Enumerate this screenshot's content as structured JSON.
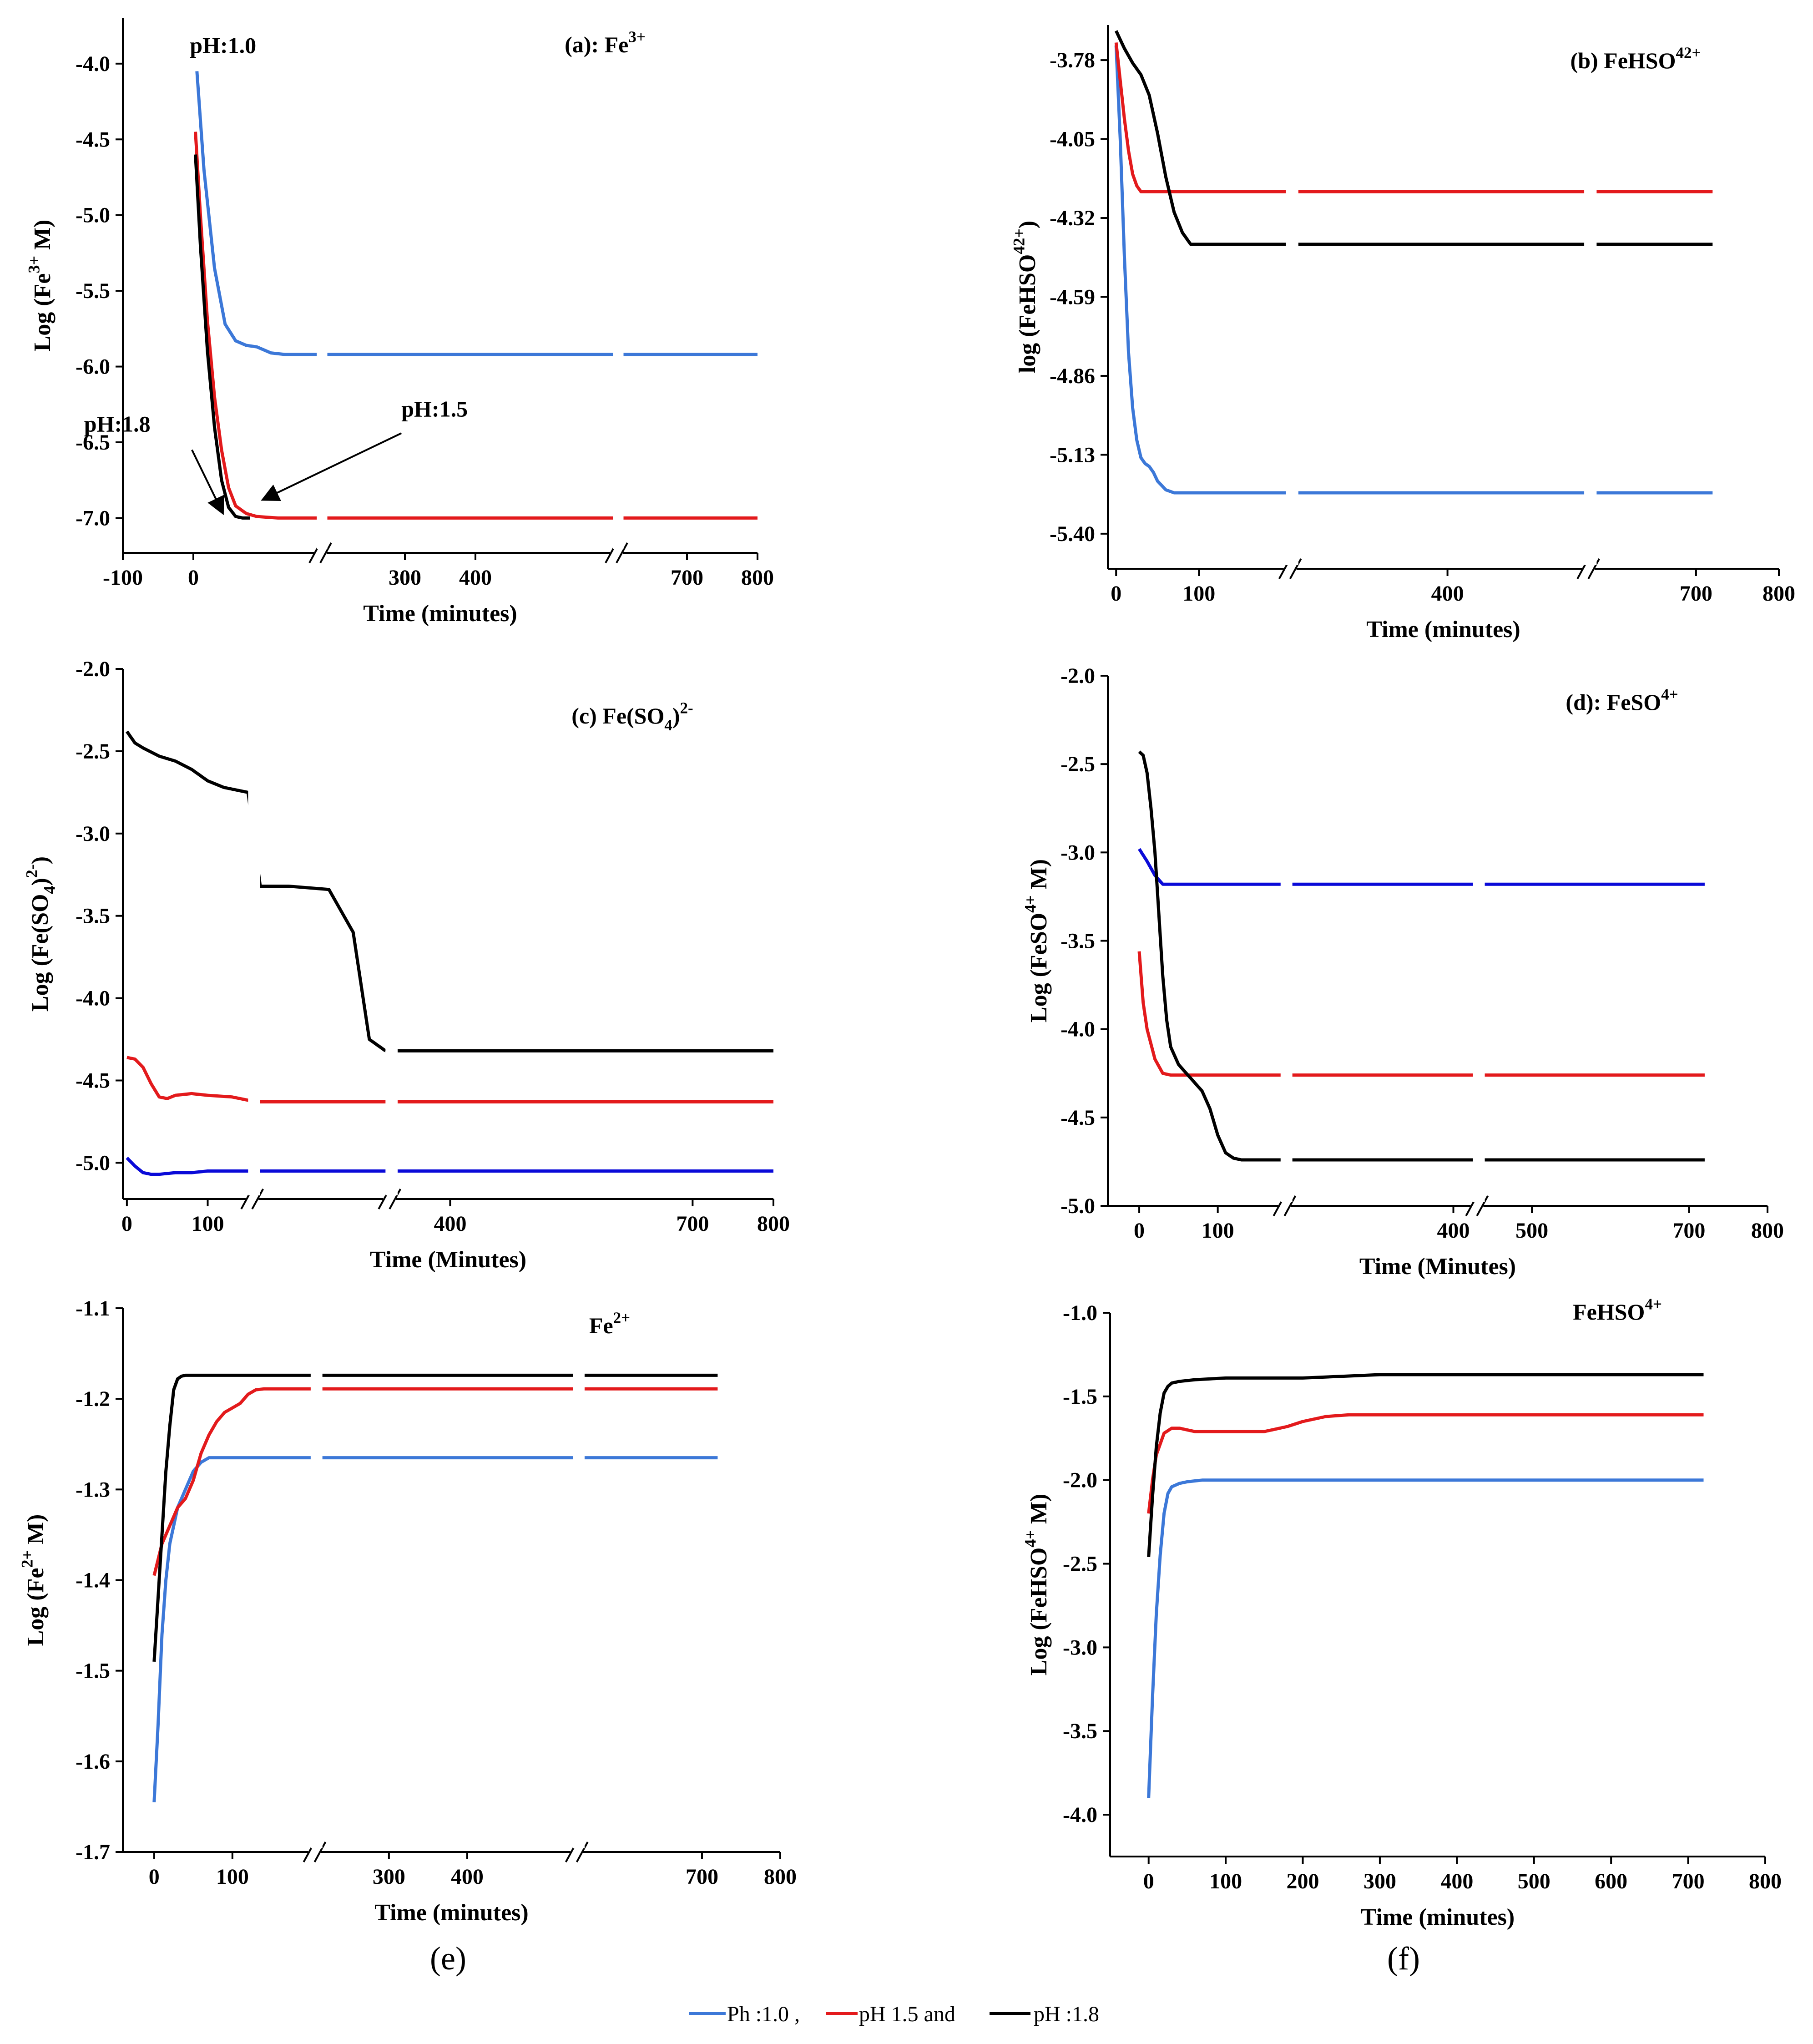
{
  "legend": {
    "items": [
      {
        "label": "Ph :1.0 ,",
        "color": "#3c78d8"
      },
      {
        "label": "pH 1.5 and",
        "color": "#e31a1c"
      },
      {
        "label": "pH :1.8",
        "color": "#000000"
      }
    ]
  },
  "captions": {
    "e": "(e)",
    "f": "(f)"
  },
  "chart_data": [
    {
      "id": "a",
      "type": "line",
      "title": "(a): Fe3+",
      "xlabel": "Time (minutes)",
      "ylabel": "Log (Fe3+ M)",
      "xlim": [
        -100,
        800
      ],
      "ylim": [
        -7.23,
        -3.7
      ],
      "xticks": [
        -100,
        0,
        300,
        400,
        700,
        800
      ],
      "xtick_labels": [
        "-100",
        "0",
        "300",
        "400",
        "700",
        "800"
      ],
      "yticks": [
        -7.0,
        -6.5,
        -6.0,
        -5.5,
        -5.0,
        -4.5,
        -4.0
      ],
      "ytick_labels": [
        "-7.0",
        "-6.5",
        "-6.0",
        "-5.5",
        "-5.0",
        "-4.5",
        "-4.0"
      ],
      "axis_breaks": [
        180,
        600
      ],
      "segment_gaps": [
        [
          175,
          190
        ],
        [
          595,
          610
        ]
      ],
      "annotations": [
        {
          "text": "pH:1.0",
          "x": -5,
          "y": -3.93
        },
        {
          "text": "pH:1.8",
          "x": -155,
          "y": -6.43
        },
        {
          "text": "pH:1.5",
          "x": 295,
          "y": -6.33
        }
      ],
      "arrows": [
        {
          "from": [
            -2,
            -6.55
          ],
          "to": [
            42,
            -6.97
          ]
        },
        {
          "from": [
            295,
            -6.44
          ],
          "to": [
            98,
            -6.88
          ]
        }
      ],
      "series": [
        {
          "name": "pH 1.0",
          "color": "#3c78d8",
          "x": [
            5,
            15,
            30,
            45,
            60,
            75,
            90,
            110,
            130,
            160,
            180,
            300,
            500,
            600,
            800
          ],
          "y": [
            -4.05,
            -4.7,
            -5.35,
            -5.72,
            -5.83,
            -5.86,
            -5.87,
            -5.91,
            -5.92,
            -5.92,
            -5.92,
            -5.92,
            -5.92,
            -5.92,
            -5.92
          ]
        },
        {
          "name": "pH 1.5",
          "color": "#e31a1c",
          "x": [
            3,
            10,
            20,
            30,
            40,
            50,
            60,
            75,
            90,
            120,
            180,
            300,
            500,
            600,
            800
          ],
          "y": [
            -4.45,
            -5.0,
            -5.7,
            -6.2,
            -6.55,
            -6.8,
            -6.92,
            -6.97,
            -6.99,
            -7.0,
            -7.0,
            -7.0,
            -7.0,
            -7.0,
            -7.0
          ]
        },
        {
          "name": "pH 1.8",
          "color": "#000000",
          "x": [
            3,
            10,
            20,
            30,
            40,
            50,
            60,
            70,
            80
          ],
          "y": [
            -4.6,
            -5.2,
            -5.9,
            -6.4,
            -6.75,
            -6.93,
            -6.99,
            -7.0,
            -7.0
          ]
        }
      ]
    },
    {
      "id": "b",
      "type": "line",
      "title": "(b) FeHSO42+",
      "xlabel": "Time (minutes)",
      "ylabel": "log (FeHSO42+)",
      "xlim": [
        -10,
        800
      ],
      "ylim": [
        -5.52,
        -3.66
      ],
      "xticks": [
        0,
        100,
        400,
        700,
        800
      ],
      "xtick_labels": [
        "0",
        "100",
        "400",
        "700",
        "800"
      ],
      "yticks": [
        -5.4,
        -5.13,
        -4.86,
        -4.59,
        -4.32,
        -4.05,
        -3.78
      ],
      "ytick_labels": [
        "-5.40",
        "-5.13",
        "-4.86",
        "-4.59",
        "-4.32",
        "-4.05",
        "-3.78"
      ],
      "axis_breaks": [
        210,
        570
      ],
      "segment_gaps": [
        [
          205,
          220
        ],
        [
          565,
          580
        ]
      ],
      "series": [
        {
          "name": "pH 1.0",
          "color": "#3c78d8",
          "x": [
            0,
            5,
            10,
            15,
            20,
            25,
            30,
            35,
            40,
            45,
            50,
            60,
            70,
            80,
            100,
            120,
            150,
            250,
            400,
            550,
            720
          ],
          "y": [
            -3.73,
            -4.05,
            -4.45,
            -4.78,
            -4.97,
            -5.08,
            -5.14,
            -5.16,
            -5.17,
            -5.19,
            -5.22,
            -5.25,
            -5.26,
            -5.26,
            -5.26,
            -5.26,
            -5.26,
            -5.26,
            -5.26,
            -5.26,
            -5.26
          ]
        },
        {
          "name": "pH 1.5",
          "color": "#e31a1c",
          "x": [
            0,
            5,
            10,
            15,
            20,
            25,
            30,
            40,
            50,
            70,
            100,
            150,
            250,
            400,
            550,
            720
          ],
          "y": [
            -3.72,
            -3.85,
            -3.98,
            -4.09,
            -4.17,
            -4.21,
            -4.23,
            -4.23,
            -4.23,
            -4.23,
            -4.23,
            -4.23,
            -4.23,
            -4.23,
            -4.23,
            -4.23
          ]
        },
        {
          "name": "pH 1.8",
          "color": "#000000",
          "x": [
            0,
            5,
            10,
            20,
            30,
            40,
            50,
            60,
            70,
            80,
            90,
            100,
            130,
            200,
            400,
            550,
            720
          ],
          "y": [
            -3.68,
            -3.71,
            -3.74,
            -3.79,
            -3.83,
            -3.9,
            -4.03,
            -4.18,
            -4.3,
            -4.37,
            -4.41,
            -4.41,
            -4.41,
            -4.41,
            -4.41,
            -4.41,
            -4.41
          ]
        }
      ]
    },
    {
      "id": "c",
      "type": "line",
      "title": "(c) Fe(SO4)2-",
      "xlabel": "Time (Minutes)",
      "ylabel": "Log (Fe(SO4)2-)",
      "xlim": [
        -5,
        800
      ],
      "ylim": [
        -5.22,
        -2.0
      ],
      "xticks": [
        0,
        100,
        400,
        700,
        800
      ],
      "xtick_labels": [
        "0",
        "100",
        "400",
        "700",
        "800"
      ],
      "yticks": [
        -5.0,
        -4.5,
        -4.0,
        -3.5,
        -3.0,
        -2.5,
        -2.0
      ],
      "ytick_labels": [
        "-5.0",
        "-4.5",
        "-4.0",
        "-3.5",
        "-3.0",
        "-2.5",
        "-2.0"
      ],
      "axis_breaks": [
        155,
        325
      ],
      "segment_gaps": [
        [
          150,
          165
        ],
        [
          320,
          335
        ]
      ],
      "series": [
        {
          "name": "pH 1.8",
          "color": "#000000",
          "x": [
            0,
            10,
            20,
            40,
            60,
            80,
            100,
            120,
            150,
            165,
            200,
            250,
            280,
            300,
            320
          ],
          "y": [
            -2.38,
            -2.45,
            -2.48,
            -2.53,
            -2.56,
            -2.61,
            -2.68,
            -2.72,
            -2.75,
            -3.32,
            -3.32,
            -3.34,
            -3.6,
            -4.25,
            -4.32
          ]
        },
        {
          "name": "pH 1.8 (cont.)",
          "color": "#000000",
          "x": [
            320,
            800
          ],
          "y": [
            -4.32,
            -4.32
          ]
        },
        {
          "name": "pH 1.5",
          "color": "#e31a1c",
          "x": [
            0,
            10,
            20,
            30,
            40,
            50,
            60,
            80,
            100,
            130,
            150,
            165,
            400,
            800
          ],
          "y": [
            -4.36,
            -4.37,
            -4.42,
            -4.52,
            -4.6,
            -4.61,
            -4.59,
            -4.58,
            -4.59,
            -4.6,
            -4.62,
            -4.63,
            -4.63,
            -4.63
          ]
        },
        {
          "name": "pH 1.0",
          "color": "#0a0ad8",
          "x": [
            0,
            10,
            20,
            30,
            40,
            60,
            80,
            100,
            150,
            165,
            400,
            800
          ],
          "y": [
            -4.97,
            -5.02,
            -5.06,
            -5.07,
            -5.07,
            -5.06,
            -5.06,
            -5.05,
            -5.05,
            -5.05,
            -5.05,
            -5.05
          ]
        }
      ]
    },
    {
      "id": "d",
      "type": "line",
      "title": "(d): FeSO4+",
      "xlabel": "Time (Minutes)",
      "ylabel": "Log (FeSO4+ M)",
      "xlim": [
        -40,
        800
      ],
      "ylim": [
        -5.0,
        -2.0
      ],
      "xticks": [
        0,
        100,
        400,
        500,
        700,
        800
      ],
      "xtick_labels": [
        "0",
        "100",
        "400",
        "500",
        "700",
        "800"
      ],
      "yticks": [
        -5.0,
        -4.5,
        -4.0,
        -3.5,
        -3.0,
        -2.5,
        -2.0
      ],
      "ytick_labels": [
        "-5.0",
        "-4.5",
        "-4.0",
        "-3.5",
        "-3.0",
        "-2.5",
        "-2.0"
      ],
      "axis_breaks": [
        185,
        430
      ],
      "segment_gaps": [
        [
          180,
          195
        ],
        [
          425,
          440
        ]
      ],
      "series": [
        {
          "name": "pH 1.0",
          "color": "#0a0ad8",
          "x": [
            0,
            10,
            20,
            30,
            40,
            60,
            100,
            180,
            300,
            720
          ],
          "y": [
            -2.98,
            -3.05,
            -3.13,
            -3.18,
            -3.18,
            -3.18,
            -3.18,
            -3.18,
            -3.18,
            -3.18
          ]
        },
        {
          "name": "pH 1.5",
          "color": "#e31a1c",
          "x": [
            0,
            5,
            10,
            20,
            30,
            40,
            60,
            100,
            180,
            300,
            720
          ],
          "y": [
            -3.56,
            -3.85,
            -4.0,
            -4.17,
            -4.25,
            -4.26,
            -4.26,
            -4.26,
            -4.26,
            -4.26,
            -4.26
          ]
        },
        {
          "name": "pH 1.8",
          "color": "#000000",
          "x": [
            0,
            5,
            10,
            15,
            20,
            25,
            30,
            35,
            40,
            50,
            60,
            70,
            80,
            90,
            100,
            110,
            120,
            130,
            150,
            200,
            300,
            720
          ],
          "y": [
            -2.43,
            -2.45,
            -2.55,
            -2.75,
            -3.0,
            -3.35,
            -3.7,
            -3.95,
            -4.1,
            -4.2,
            -4.25,
            -4.3,
            -4.35,
            -4.45,
            -4.6,
            -4.7,
            -4.73,
            -4.74,
            -4.74,
            -4.74,
            -4.74,
            -4.74
          ]
        }
      ]
    },
    {
      "id": "e",
      "type": "line",
      "title": "Fe2+",
      "xlabel": "Time (minutes)",
      "ylabel": "Log (Fe2+ M)",
      "xlim": [
        -40,
        800
      ],
      "ylim": [
        -1.7,
        -1.1
      ],
      "xticks": [
        0,
        100,
        300,
        400,
        700,
        800
      ],
      "xtick_labels": [
        "0",
        "100",
        "300",
        "400",
        "700",
        "800"
      ],
      "yticks": [
        -1.7,
        -1.6,
        -1.5,
        -1.4,
        -1.3,
        -1.2,
        -1.1
      ],
      "ytick_labels": [
        "-1.7",
        "-1.6",
        "-1.5",
        "-1.4",
        "-1.3",
        "-1.2",
        "-1.1"
      ],
      "axis_breaks": [
        205,
        540
      ],
      "segment_gaps": [
        [
          200,
          215
        ],
        [
          535,
          550
        ]
      ],
      "series": [
        {
          "name": "pH 1.0",
          "color": "#3c78d8",
          "x": [
            0,
            5,
            10,
            15,
            20,
            30,
            40,
            50,
            60,
            70,
            80,
            100,
            150,
            300,
            720
          ],
          "y": [
            -1.645,
            -1.56,
            -1.46,
            -1.4,
            -1.36,
            -1.32,
            -1.3,
            -1.28,
            -1.27,
            -1.265,
            -1.265,
            -1.265,
            -1.265,
            -1.265,
            -1.265
          ]
        },
        {
          "name": "pH 1.5",
          "color": "#e31a1c",
          "x": [
            0,
            10,
            20,
            30,
            40,
            50,
            60,
            70,
            80,
            90,
            100,
            110,
            120,
            130,
            140,
            160,
            300,
            720
          ],
          "y": [
            -1.395,
            -1.36,
            -1.34,
            -1.32,
            -1.31,
            -1.29,
            -1.26,
            -1.24,
            -1.225,
            -1.215,
            -1.21,
            -1.205,
            -1.195,
            -1.19,
            -1.189,
            -1.189,
            -1.189,
            -1.189
          ]
        },
        {
          "name": "pH 1.8",
          "color": "#000000",
          "x": [
            0,
            5,
            10,
            15,
            20,
            25,
            30,
            35,
            40,
            50,
            70,
            100,
            300,
            720
          ],
          "y": [
            -1.49,
            -1.42,
            -1.35,
            -1.28,
            -1.23,
            -1.19,
            -1.178,
            -1.175,
            -1.174,
            -1.174,
            -1.174,
            -1.174,
            -1.174,
            -1.174
          ]
        }
      ]
    },
    {
      "id": "f",
      "type": "line",
      "title": "FeHSO4+",
      "xlabel": "Time (minutes)",
      "ylabel": "Log (FeHSO4+ M)",
      "xlim": [
        -50,
        800
      ],
      "ylim": [
        -4.25,
        -1.0
      ],
      "xticks": [
        0,
        100,
        200,
        300,
        400,
        500,
        600,
        700,
        800
      ],
      "xtick_labels": [
        "0",
        "100",
        "200",
        "300",
        "400",
        "500",
        "600",
        "700",
        "800"
      ],
      "yticks": [
        -4.0,
        -3.5,
        -3.0,
        -2.5,
        -2.0,
        -1.5,
        -1.0
      ],
      "ytick_labels": [
        "-4.0",
        "-3.5",
        "-3.0",
        "-2.5",
        "-2.0",
        "-1.5",
        "-1.0"
      ],
      "axis_breaks": [],
      "segment_gaps": [],
      "series": [
        {
          "name": "pH 1.0",
          "color": "#3c78d8",
          "x": [
            0,
            5,
            10,
            15,
            20,
            25,
            30,
            40,
            50,
            60,
            70,
            100,
            200,
            400,
            720
          ],
          "y": [
            -3.9,
            -3.3,
            -2.8,
            -2.45,
            -2.2,
            -2.08,
            -2.04,
            -2.02,
            -2.01,
            -2.005,
            -2.0,
            -2.0,
            -2.0,
            -2.0,
            -2.0
          ]
        },
        {
          "name": "pH 1.5",
          "color": "#e31a1c",
          "x": [
            0,
            5,
            10,
            20,
            30,
            40,
            50,
            60,
            80,
            100,
            150,
            160,
            180,
            200,
            230,
            260,
            400,
            720
          ],
          "y": [
            -2.2,
            -2.0,
            -1.85,
            -1.72,
            -1.69,
            -1.69,
            -1.7,
            -1.71,
            -1.71,
            -1.71,
            -1.71,
            -1.7,
            -1.68,
            -1.65,
            -1.62,
            -1.61,
            -1.61,
            -1.61
          ]
        },
        {
          "name": "pH 1.8",
          "color": "#000000",
          "x": [
            0,
            5,
            10,
            15,
            20,
            25,
            30,
            40,
            60,
            80,
            100,
            200,
            250,
            300,
            400,
            720
          ],
          "y": [
            -2.46,
            -2.1,
            -1.8,
            -1.6,
            -1.48,
            -1.44,
            -1.42,
            -1.41,
            -1.4,
            -1.395,
            -1.39,
            -1.39,
            -1.38,
            -1.37,
            -1.37,
            -1.37
          ]
        }
      ]
    }
  ]
}
